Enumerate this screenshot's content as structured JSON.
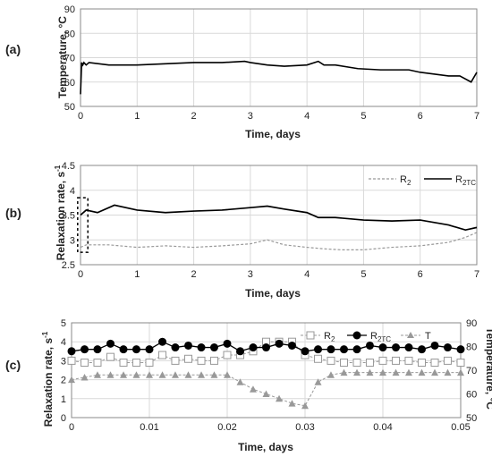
{
  "panels": {
    "a": {
      "label": "(a)",
      "xlabel": "Time, days",
      "ylabel": "Temperature, °C"
    },
    "b": {
      "label": "(b)",
      "xlabel": "Time, days",
      "ylabel_main": "Relaxation rate, s",
      "ylabel_sup": "-1"
    },
    "c": {
      "label": "(c)",
      "xlabel": "Time, days",
      "ylabel_main": "Relaxation rate, s",
      "ylabel_sup": "-1",
      "ylabel_right": "Temperature, °C"
    }
  },
  "legend_b": {
    "r2_main": "R",
    "r2_sub": "2",
    "r2tc_main": "R",
    "r2tc_sub": "2TC"
  },
  "legend_c": {
    "r2_main": "R",
    "r2_sub": "2",
    "r2tc_main": "R",
    "r2tc_sub": "2TC",
    "t": "T"
  },
  "colors": {
    "grid": "#d9d9d9",
    "r2": "#999999",
    "r2tc": "#000000",
    "temp": "#000000",
    "t_series": "#999999"
  },
  "chart_data": [
    {
      "type": "line",
      "title": "(a)",
      "xlabel": "Time, days",
      "ylabel": "Temperature, °C",
      "xlim": [
        0,
        7
      ],
      "ylim": [
        50,
        90
      ],
      "xticks": [
        "0",
        "1",
        "2",
        "3",
        "4",
        "5",
        "6",
        "7"
      ],
      "yticks": [
        "50",
        "60",
        "70",
        "80",
        "90"
      ],
      "grid": true,
      "series": [
        {
          "x": [
            0,
            0.02,
            0.04,
            0.06,
            0.1,
            0.15,
            0.5,
            1.0,
            1.5,
            2.0,
            2.5,
            2.9,
            3.0,
            3.3,
            3.6,
            4.0,
            4.2,
            4.3,
            4.5,
            4.9,
            5.3,
            5.8,
            6.0,
            6.5,
            6.7,
            6.9,
            6.95,
            7.0
          ],
          "values": [
            55,
            68,
            67,
            68,
            67,
            68,
            67,
            67,
            67.5,
            68,
            68,
            68.5,
            68,
            67,
            66.5,
            67,
            68.5,
            67,
            67,
            65.5,
            65,
            65,
            64,
            62.5,
            62.5,
            60,
            62,
            64
          ]
        }
      ]
    },
    {
      "type": "line",
      "title": "(b)",
      "xlabel": "Time, days",
      "ylabel": "Relaxation rate, s-1",
      "xlim": [
        0,
        7
      ],
      "ylim": [
        2.5,
        4.5
      ],
      "xticks": [
        "0",
        "1",
        "2",
        "3",
        "4",
        "5",
        "6",
        "7"
      ],
      "yticks": [
        "2.5",
        "3",
        "3.5",
        "4",
        "4.5"
      ],
      "grid": true,
      "legend": "top-right",
      "series": [
        {
          "name": "R2",
          "x": [
            0,
            0.1,
            0.5,
            1.0,
            1.5,
            2.0,
            2.5,
            3.0,
            3.3,
            3.6,
            4.0,
            4.3,
            4.6,
            5.0,
            5.5,
            6.0,
            6.5,
            6.8,
            7.0
          ],
          "values": [
            2.85,
            2.9,
            2.9,
            2.85,
            2.88,
            2.85,
            2.88,
            2.92,
            3.0,
            2.9,
            2.85,
            2.82,
            2.8,
            2.8,
            2.85,
            2.88,
            2.95,
            3.05,
            3.15
          ]
        },
        {
          "name": "R2TC",
          "x": [
            0,
            0.1,
            0.3,
            0.6,
            1.0,
            1.5,
            2.0,
            2.5,
            3.0,
            3.3,
            3.6,
            4.0,
            4.2,
            4.5,
            5.0,
            5.5,
            6.0,
            6.5,
            6.8,
            7.0
          ],
          "values": [
            3.5,
            3.6,
            3.55,
            3.7,
            3.6,
            3.55,
            3.58,
            3.6,
            3.65,
            3.68,
            3.62,
            3.55,
            3.45,
            3.45,
            3.4,
            3.38,
            3.4,
            3.3,
            3.2,
            3.25
          ]
        }
      ]
    },
    {
      "type": "line",
      "title": "(c)",
      "xlabel": "Time, days",
      "ylabel": "Relaxation rate, s-1",
      "ylabel_right": "Temperature, °C",
      "xlim": [
        0,
        0.05
      ],
      "ylim": [
        0,
        5
      ],
      "ylim_right": [
        50,
        90
      ],
      "xticks": [
        "0",
        "0.01",
        "0.02",
        "0.03",
        "0.04",
        "0.05"
      ],
      "yticks": [
        "0",
        "1",
        "2",
        "3",
        "4",
        "5"
      ],
      "yticks_right": [
        "50",
        "60",
        "70",
        "80",
        "90"
      ],
      "grid": true,
      "legend": "top-right",
      "x": [
        0,
        0.00167,
        0.00333,
        0.005,
        0.00667,
        0.00833,
        0.01,
        0.01167,
        0.01333,
        0.015,
        0.01667,
        0.01833,
        0.02,
        0.02167,
        0.02333,
        0.025,
        0.02667,
        0.02833,
        0.03,
        0.03167,
        0.03333,
        0.035,
        0.03667,
        0.03833,
        0.04,
        0.04167,
        0.04333,
        0.045,
        0.04667,
        0.04833,
        0.05
      ],
      "series": [
        {
          "name": "R2",
          "axis": "left",
          "values": [
            3.0,
            2.9,
            2.9,
            3.2,
            2.9,
            2.9,
            2.9,
            3.3,
            3.0,
            3.1,
            3.0,
            3.0,
            3.3,
            3.3,
            3.5,
            4.0,
            4.0,
            4.0,
            3.3,
            3.1,
            3.0,
            2.9,
            2.9,
            2.9,
            3.0,
            3.0,
            3.0,
            2.9,
            2.9,
            3.0,
            2.9
          ]
        },
        {
          "name": "R2TC",
          "axis": "left",
          "values": [
            3.5,
            3.6,
            3.6,
            3.9,
            3.6,
            3.6,
            3.6,
            4.0,
            3.7,
            3.8,
            3.7,
            3.7,
            3.9,
            3.5,
            3.7,
            3.7,
            3.9,
            3.8,
            3.5,
            3.6,
            3.6,
            3.6,
            3.6,
            3.8,
            3.7,
            3.7,
            3.7,
            3.6,
            3.8,
            3.7,
            3.6
          ]
        },
        {
          "name": "T",
          "axis": "right",
          "values": [
            66,
            67,
            68,
            68,
            68,
            68,
            68,
            68,
            68,
            68,
            68,
            68,
            68,
            65,
            62,
            60,
            58,
            56,
            55,
            65,
            68,
            69,
            69,
            69,
            69,
            69,
            69,
            69,
            69,
            69,
            69
          ]
        }
      ]
    }
  ]
}
